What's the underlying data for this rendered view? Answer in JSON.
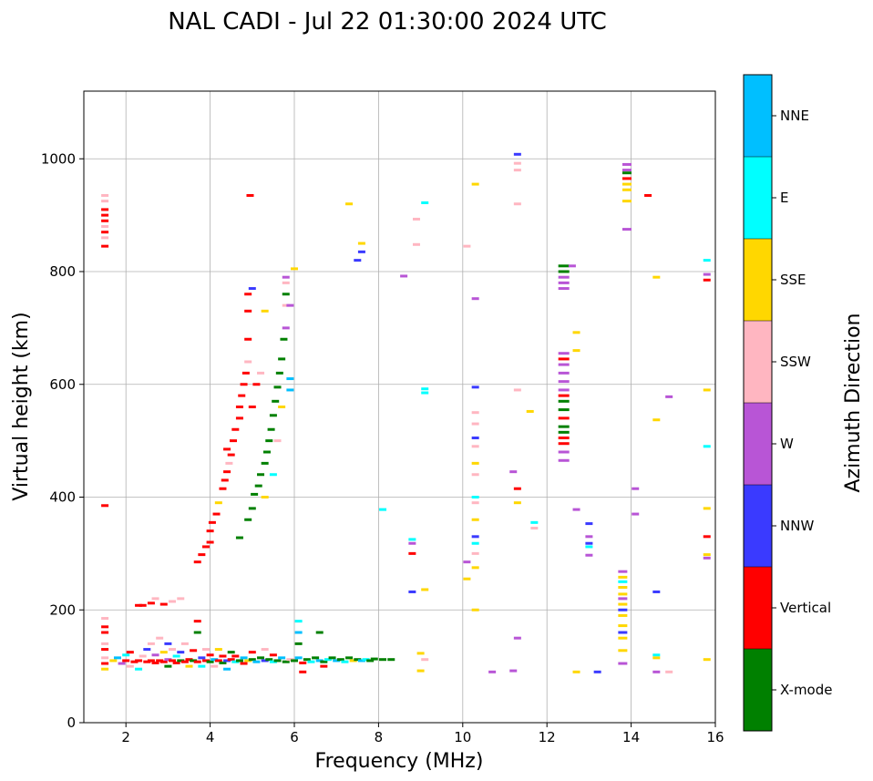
{
  "chart_data": {
    "type": "scatter",
    "title": "NAL CADI - Jul 22 01:30:00 2024 UTC",
    "xlabel": "Frequency (MHz)",
    "ylabel": "Virtual height (km)",
    "xlim": [
      1,
      16
    ],
    "ylim": [
      0,
      1120
    ],
    "xticks": [
      2,
      4,
      6,
      8,
      10,
      12,
      14,
      16
    ],
    "yticks": [
      0,
      200,
      400,
      600,
      800,
      1000
    ],
    "grid": true,
    "colorbar": {
      "label": "Azimuth Direction",
      "placement": "right",
      "categories": [
        {
          "name": "X-mode",
          "color": "#008000"
        },
        {
          "name": "Vertical",
          "color": "#ff0000"
        },
        {
          "name": "NNW",
          "color": "#3a3aff"
        },
        {
          "name": "W",
          "color": "#b855d6"
        },
        {
          "name": "SSW",
          "color": "#ffb6c1"
        },
        {
          "name": "SSE",
          "color": "#ffd700"
        },
        {
          "name": "E",
          "color": "#00ffff"
        },
        {
          "name": "NNE",
          "color": "#00bfff"
        }
      ]
    },
    "point_format": [
      "frequency_mhz",
      "height_km",
      "category_index"
    ],
    "points": [
      [
        1.5,
        845,
        1
      ],
      [
        1.5,
        860,
        4
      ],
      [
        1.5,
        870,
        1
      ],
      [
        1.5,
        880,
        4
      ],
      [
        1.5,
        890,
        1
      ],
      [
        1.5,
        900,
        1
      ],
      [
        1.5,
        910,
        1
      ],
      [
        1.5,
        925,
        4
      ],
      [
        1.5,
        935,
        4
      ],
      [
        1.5,
        385,
        1
      ],
      [
        1.5,
        95,
        5
      ],
      [
        1.5,
        105,
        1
      ],
      [
        1.5,
        115,
        4
      ],
      [
        1.5,
        130,
        1
      ],
      [
        1.5,
        140,
        4
      ],
      [
        1.5,
        160,
        1
      ],
      [
        1.5,
        170,
        1
      ],
      [
        1.5,
        185,
        4
      ],
      [
        1.7,
        110,
        5
      ],
      [
        1.8,
        115,
        7
      ],
      [
        1.9,
        105,
        3
      ],
      [
        2.0,
        110,
        1
      ],
      [
        2.0,
        120,
        6
      ],
      [
        2.1,
        100,
        4
      ],
      [
        2.1,
        125,
        1
      ],
      [
        2.2,
        108,
        1
      ],
      [
        2.3,
        110,
        1
      ],
      [
        2.3,
        95,
        6
      ],
      [
        2.4,
        118,
        4
      ],
      [
        2.5,
        108,
        1
      ],
      [
        2.5,
        130,
        2
      ],
      [
        2.6,
        110,
        1
      ],
      [
        2.6,
        140,
        4
      ],
      [
        2.7,
        106,
        1
      ],
      [
        2.7,
        120,
        3
      ],
      [
        2.8,
        110,
        1
      ],
      [
        2.8,
        150,
        4
      ],
      [
        2.9,
        108,
        1
      ],
      [
        2.9,
        125,
        5
      ],
      [
        3.0,
        112,
        3
      ],
      [
        3.0,
        140,
        2
      ],
      [
        3.0,
        100,
        0
      ],
      [
        3.1,
        110,
        1
      ],
      [
        3.1,
        130,
        4
      ],
      [
        3.2,
        106,
        1
      ],
      [
        3.2,
        118,
        6
      ],
      [
        3.3,
        110,
        0
      ],
      [
        3.3,
        125,
        2
      ],
      [
        3.4,
        108,
        1
      ],
      [
        3.4,
        140,
        4
      ],
      [
        3.5,
        112,
        1
      ],
      [
        3.5,
        100,
        5
      ],
      [
        3.6,
        110,
        0
      ],
      [
        3.6,
        128,
        1
      ],
      [
        3.7,
        108,
        1
      ],
      [
        3.7,
        160,
        0
      ],
      [
        3.7,
        180,
        1
      ],
      [
        3.8,
        115,
        2
      ],
      [
        3.8,
        100,
        6
      ],
      [
        3.9,
        110,
        1
      ],
      [
        3.9,
        130,
        4
      ],
      [
        4.0,
        108,
        0
      ],
      [
        4.0,
        120,
        1
      ],
      [
        4.1,
        112,
        7
      ],
      [
        4.1,
        100,
        4
      ],
      [
        4.2,
        110,
        1
      ],
      [
        4.2,
        130,
        5
      ],
      [
        4.3,
        106,
        0
      ],
      [
        4.3,
        118,
        1
      ],
      [
        4.4,
        110,
        2
      ],
      [
        4.4,
        95,
        7
      ],
      [
        4.5,
        112,
        1
      ],
      [
        4.5,
        125,
        0
      ],
      [
        4.6,
        108,
        6
      ],
      [
        4.6,
        118,
        1
      ],
      [
        4.7,
        110,
        0
      ],
      [
        4.8,
        115,
        7
      ],
      [
        4.8,
        105,
        1
      ],
      [
        4.9,
        110,
        5
      ],
      [
        5.0,
        112,
        0
      ],
      [
        5.0,
        125,
        1
      ],
      [
        5.1,
        108,
        7
      ],
      [
        5.2,
        115,
        0
      ],
      [
        5.3,
        110,
        2
      ],
      [
        5.3,
        130,
        4
      ],
      [
        5.4,
        112,
        0
      ],
      [
        5.5,
        108,
        6
      ],
      [
        5.5,
        120,
        1
      ],
      [
        5.6,
        110,
        0
      ],
      [
        5.7,
        115,
        7
      ],
      [
        5.8,
        108,
        0
      ],
      [
        5.9,
        112,
        4
      ],
      [
        6.0,
        110,
        0
      ],
      [
        6.1,
        115,
        7
      ],
      [
        6.2,
        106,
        1
      ],
      [
        6.2,
        90,
        1
      ],
      [
        6.3,
        112,
        0
      ],
      [
        6.4,
        108,
        6
      ],
      [
        6.5,
        115,
        0
      ],
      [
        6.6,
        110,
        7
      ],
      [
        6.6,
        160,
        0
      ],
      [
        6.7,
        108,
        0
      ],
      [
        6.7,
        100,
        1
      ],
      [
        6.8,
        112,
        6
      ],
      [
        6.9,
        115,
        0
      ],
      [
        7.0,
        110,
        7
      ],
      [
        7.1,
        112,
        0
      ],
      [
        7.2,
        108,
        6
      ],
      [
        7.3,
        115,
        0
      ],
      [
        7.4,
        110,
        5
      ],
      [
        7.5,
        112,
        0
      ],
      [
        7.6,
        110,
        7
      ],
      [
        7.7,
        112,
        6
      ],
      [
        7.8,
        110,
        0
      ],
      [
        7.9,
        113,
        0
      ],
      [
        8.1,
        112,
        0
      ],
      [
        8.3,
        112,
        0
      ],
      [
        6.1,
        180,
        6
      ],
      [
        6.1,
        160,
        7
      ],
      [
        6.1,
        140,
        0
      ],
      [
        2.3,
        208,
        1
      ],
      [
        2.4,
        208,
        1
      ],
      [
        2.6,
        212,
        1
      ],
      [
        2.7,
        220,
        4
      ],
      [
        2.9,
        210,
        1
      ],
      [
        3.1,
        215,
        4
      ],
      [
        3.3,
        220,
        4
      ],
      [
        3.7,
        285,
        1
      ],
      [
        3.8,
        298,
        1
      ],
      [
        3.9,
        312,
        1
      ],
      [
        4.0,
        320,
        1
      ],
      [
        4.0,
        340,
        1
      ],
      [
        4.05,
        355,
        1
      ],
      [
        4.15,
        370,
        1
      ],
      [
        4.2,
        390,
        5
      ],
      [
        4.3,
        415,
        1
      ],
      [
        4.35,
        430,
        1
      ],
      [
        4.4,
        445,
        1
      ],
      [
        4.45,
        460,
        4
      ],
      [
        4.4,
        485,
        1
      ],
      [
        4.5,
        475,
        1
      ],
      [
        4.55,
        500,
        1
      ],
      [
        4.6,
        520,
        1
      ],
      [
        4.7,
        540,
        1
      ],
      [
        4.7,
        560,
        1
      ],
      [
        4.75,
        580,
        1
      ],
      [
        4.8,
        600,
        1
      ],
      [
        4.85,
        620,
        1
      ],
      [
        4.9,
        640,
        4
      ],
      [
        4.9,
        680,
        1
      ],
      [
        4.9,
        730,
        1
      ],
      [
        4.9,
        760,
        1
      ],
      [
        4.95,
        935,
        1
      ],
      [
        5.0,
        770,
        2
      ],
      [
        5.1,
        600,
        1
      ],
      [
        5.2,
        620,
        4
      ],
      [
        5.3,
        730,
        5
      ],
      [
        5.0,
        560,
        1
      ],
      [
        4.7,
        328,
        0
      ],
      [
        4.9,
        360,
        0
      ],
      [
        5.0,
        380,
        0
      ],
      [
        5.05,
        405,
        0
      ],
      [
        5.15,
        420,
        0
      ],
      [
        5.2,
        440,
        0
      ],
      [
        5.3,
        460,
        0
      ],
      [
        5.35,
        480,
        0
      ],
      [
        5.4,
        500,
        0
      ],
      [
        5.45,
        520,
        0
      ],
      [
        5.5,
        545,
        0
      ],
      [
        5.55,
        570,
        0
      ],
      [
        5.6,
        595,
        0
      ],
      [
        5.65,
        620,
        0
      ],
      [
        5.7,
        645,
        0
      ],
      [
        5.75,
        680,
        0
      ],
      [
        5.8,
        700,
        3
      ],
      [
        5.8,
        740,
        4
      ],
      [
        5.8,
        760,
        0
      ],
      [
        5.8,
        780,
        4
      ],
      [
        5.8,
        790,
        3
      ],
      [
        5.9,
        740,
        3
      ],
      [
        5.9,
        610,
        7
      ],
      [
        5.9,
        590,
        7
      ],
      [
        6.0,
        805,
        5
      ],
      [
        5.6,
        500,
        4
      ],
      [
        5.7,
        560,
        5
      ],
      [
        5.5,
        440,
        6
      ],
      [
        5.3,
        400,
        5
      ],
      [
        7.3,
        920,
        5
      ],
      [
        7.5,
        820,
        2
      ],
      [
        7.6,
        835,
        2
      ],
      [
        7.6,
        850,
        5
      ],
      [
        8.1,
        378,
        6
      ],
      [
        8.6,
        792,
        3
      ],
      [
        8.8,
        325,
        6
      ],
      [
        8.8,
        318,
        3
      ],
      [
        8.8,
        300,
        1
      ],
      [
        8.8,
        232,
        2
      ],
      [
        8.9,
        893,
        4
      ],
      [
        8.9,
        848,
        4
      ],
      [
        9.0,
        123,
        5
      ],
      [
        9.0,
        92,
        5
      ],
      [
        9.1,
        922,
        6
      ],
      [
        9.1,
        592,
        6
      ],
      [
        9.1,
        585,
        6
      ],
      [
        9.1,
        236,
        5
      ],
      [
        9.1,
        112,
        4
      ],
      [
        10.1,
        845,
        4
      ],
      [
        10.1,
        285,
        3
      ],
      [
        10.1,
        255,
        5
      ],
      [
        10.3,
        955,
        5
      ],
      [
        10.3,
        752,
        3
      ],
      [
        10.3,
        595,
        2
      ],
      [
        10.3,
        550,
        4
      ],
      [
        10.3,
        530,
        4
      ],
      [
        10.3,
        505,
        2
      ],
      [
        10.3,
        490,
        4
      ],
      [
        10.3,
        460,
        5
      ],
      [
        10.3,
        440,
        4
      ],
      [
        10.3,
        400,
        6
      ],
      [
        10.3,
        390,
        4
      ],
      [
        10.3,
        360,
        5
      ],
      [
        10.3,
        330,
        2
      ],
      [
        10.3,
        318,
        6
      ],
      [
        10.3,
        300,
        4
      ],
      [
        10.3,
        275,
        5
      ],
      [
        10.3,
        200,
        5
      ],
      [
        10.7,
        90,
        3
      ],
      [
        11.2,
        445,
        3
      ],
      [
        11.2,
        92,
        3
      ],
      [
        11.3,
        1008,
        2
      ],
      [
        11.3,
        992,
        4
      ],
      [
        11.3,
        980,
        4
      ],
      [
        11.3,
        920,
        4
      ],
      [
        11.3,
        590,
        4
      ],
      [
        11.3,
        415,
        1
      ],
      [
        11.3,
        390,
        5
      ],
      [
        11.3,
        150,
        3
      ],
      [
        11.6,
        552,
        5
      ],
      [
        11.7,
        355,
        6
      ],
      [
        11.7,
        345,
        4
      ],
      [
        12.4,
        810,
        0
      ],
      [
        12.4,
        800,
        0
      ],
      [
        12.4,
        790,
        3
      ],
      [
        12.4,
        780,
        3
      ],
      [
        12.4,
        770,
        3
      ],
      [
        12.6,
        810,
        3
      ],
      [
        12.4,
        655,
        3
      ],
      [
        12.4,
        645,
        1
      ],
      [
        12.4,
        635,
        3
      ],
      [
        12.4,
        620,
        3
      ],
      [
        12.4,
        605,
        3
      ],
      [
        12.4,
        590,
        3
      ],
      [
        12.4,
        580,
        1
      ],
      [
        12.4,
        570,
        0
      ],
      [
        12.4,
        555,
        0
      ],
      [
        12.4,
        540,
        1
      ],
      [
        12.4,
        525,
        0
      ],
      [
        12.4,
        515,
        0
      ],
      [
        12.4,
        505,
        1
      ],
      [
        12.4,
        495,
        1
      ],
      [
        12.4,
        480,
        3
      ],
      [
        12.4,
        465,
        3
      ],
      [
        12.7,
        692,
        5
      ],
      [
        12.7,
        660,
        5
      ],
      [
        12.7,
        378,
        3
      ],
      [
        12.7,
        90,
        5
      ],
      [
        13.0,
        353,
        2
      ],
      [
        13.0,
        330,
        3
      ],
      [
        13.0,
        318,
        2
      ],
      [
        13.0,
        312,
        6
      ],
      [
        13.0,
        297,
        3
      ],
      [
        13.2,
        90,
        2
      ],
      [
        13.8,
        268,
        3
      ],
      [
        13.8,
        258,
        5
      ],
      [
        13.8,
        250,
        6
      ],
      [
        13.8,
        240,
        5
      ],
      [
        13.8,
        228,
        5
      ],
      [
        13.8,
        220,
        3
      ],
      [
        13.8,
        210,
        5
      ],
      [
        13.8,
        200,
        2
      ],
      [
        13.8,
        190,
        5
      ],
      [
        13.8,
        172,
        5
      ],
      [
        13.8,
        160,
        2
      ],
      [
        13.8,
        150,
        5
      ],
      [
        13.8,
        128,
        5
      ],
      [
        13.8,
        105,
        3
      ],
      [
        13.9,
        990,
        3
      ],
      [
        13.9,
        980,
        3
      ],
      [
        13.9,
        975,
        0
      ],
      [
        13.9,
        965,
        1
      ],
      [
        13.9,
        955,
        5
      ],
      [
        13.9,
        945,
        5
      ],
      [
        13.9,
        925,
        5
      ],
      [
        13.9,
        875,
        3
      ],
      [
        14.1,
        415,
        3
      ],
      [
        14.1,
        370,
        3
      ],
      [
        14.4,
        935,
        1
      ],
      [
        14.6,
        790,
        5
      ],
      [
        14.6,
        232,
        2
      ],
      [
        14.6,
        120,
        6
      ],
      [
        14.6,
        115,
        5
      ],
      [
        14.6,
        90,
        3
      ],
      [
        14.9,
        90,
        4
      ],
      [
        14.9,
        578,
        3
      ],
      [
        14.6,
        537,
        5
      ],
      [
        15.8,
        820,
        6
      ],
      [
        15.8,
        795,
        3
      ],
      [
        15.8,
        785,
        1
      ],
      [
        15.8,
        590,
        5
      ],
      [
        15.8,
        490,
        6
      ],
      [
        15.8,
        380,
        5
      ],
      [
        15.8,
        330,
        1
      ],
      [
        15.8,
        298,
        5
      ],
      [
        15.8,
        292,
        3
      ],
      [
        15.8,
        112,
        5
      ]
    ]
  }
}
